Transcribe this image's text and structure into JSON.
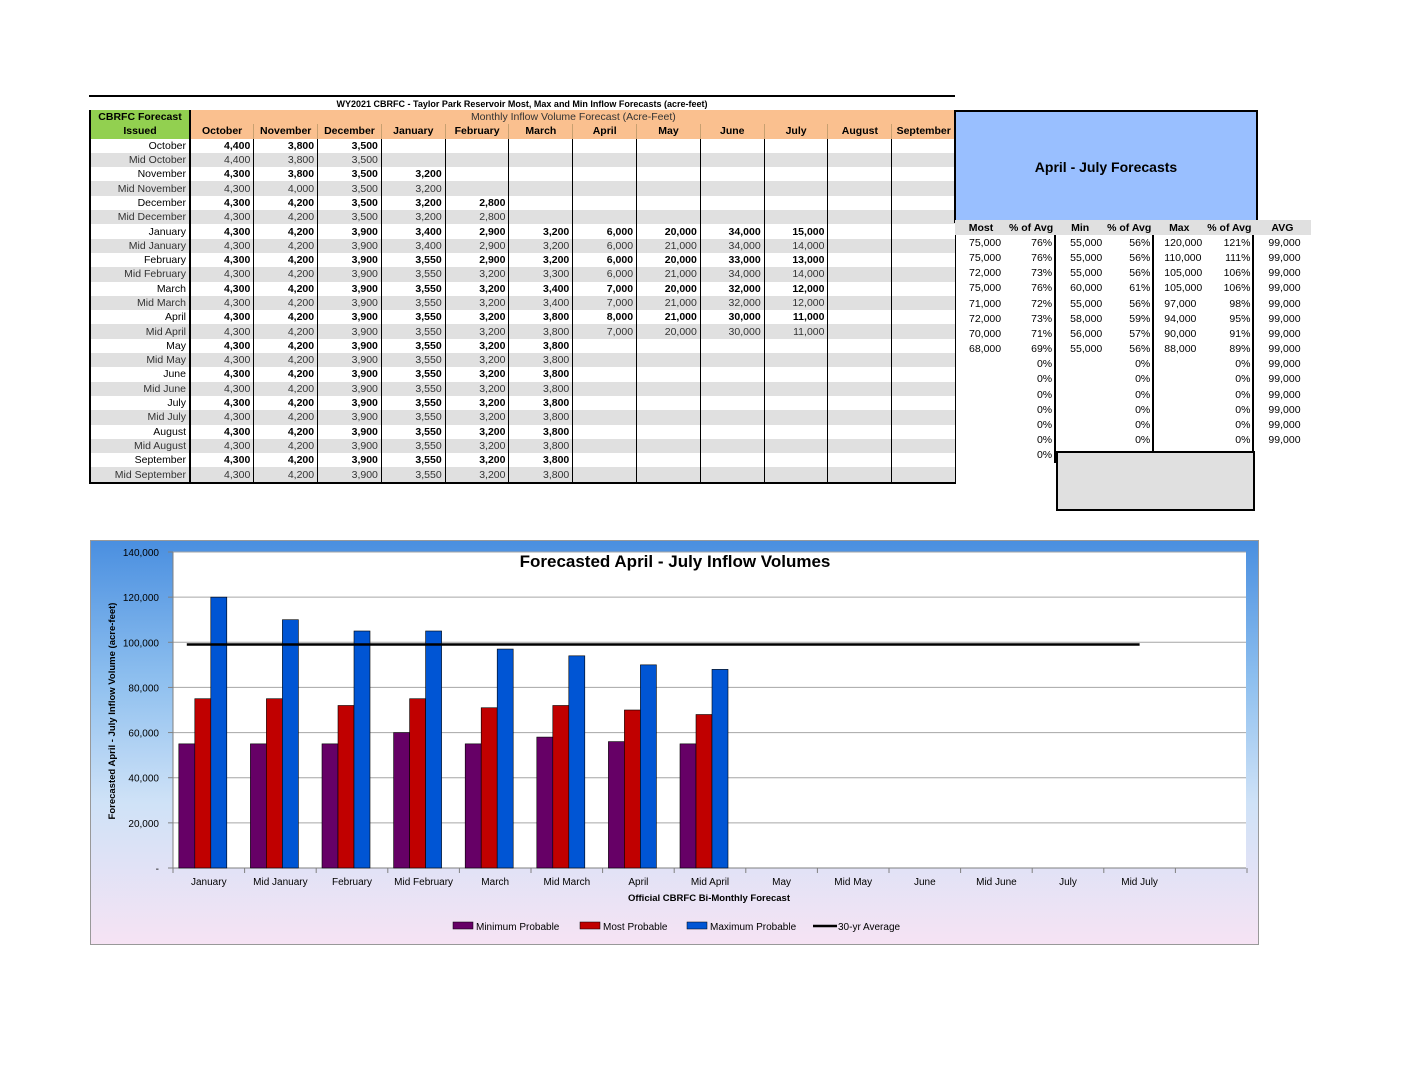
{
  "table": {
    "title": "WY2021 CBRFC - Taylor Park Reservoir Most, Max and Min Inflow Forecasts (acre-feet)",
    "header_left_1": "CBRFC Forecast",
    "header_left_2": "Issued",
    "header_monthly": "Monthly Inflow Volume Forecast (Acre-Feet)",
    "months": [
      "October",
      "November",
      "December",
      "January",
      "February",
      "March",
      "April",
      "May",
      "June",
      "July",
      "August",
      "September"
    ],
    "rows": [
      {
        "label": "October",
        "mid": false,
        "values": [
          "4,400",
          "3,800",
          "3,500",
          "",
          "",
          "",
          "",
          "",
          "",
          "",
          "",
          ""
        ]
      },
      {
        "label": "Mid October",
        "mid": true,
        "values": [
          "4,400",
          "3,800",
          "3,500",
          "",
          "",
          "",
          "",
          "",
          "",
          "",
          "",
          ""
        ]
      },
      {
        "label": "November",
        "mid": false,
        "values": [
          "4,300",
          "3,800",
          "3,500",
          "3,200",
          "",
          "",
          "",
          "",
          "",
          "",
          "",
          ""
        ]
      },
      {
        "label": "Mid November",
        "mid": true,
        "values": [
          "4,300",
          "4,000",
          "3,500",
          "3,200",
          "",
          "",
          "",
          "",
          "",
          "",
          "",
          ""
        ]
      },
      {
        "label": "December",
        "mid": false,
        "values": [
          "4,300",
          "4,200",
          "3,500",
          "3,200",
          "2,800",
          "",
          "",
          "",
          "",
          "",
          "",
          ""
        ]
      },
      {
        "label": "Mid December",
        "mid": true,
        "values": [
          "4,300",
          "4,200",
          "3,500",
          "3,200",
          "2,800",
          "",
          "",
          "",
          "",
          "",
          "",
          ""
        ]
      },
      {
        "label": "January",
        "mid": false,
        "values": [
          "4,300",
          "4,200",
          "3,900",
          "3,400",
          "2,900",
          "3,200",
          "6,000",
          "20,000",
          "34,000",
          "15,000",
          "",
          ""
        ]
      },
      {
        "label": "Mid January",
        "mid": true,
        "values": [
          "4,300",
          "4,200",
          "3,900",
          "3,400",
          "2,900",
          "3,200",
          "6,000",
          "21,000",
          "34,000",
          "14,000",
          "",
          ""
        ]
      },
      {
        "label": "February",
        "mid": false,
        "values": [
          "4,300",
          "4,200",
          "3,900",
          "3,550",
          "2,900",
          "3,200",
          "6,000",
          "20,000",
          "33,000",
          "13,000",
          "",
          ""
        ]
      },
      {
        "label": "Mid February",
        "mid": true,
        "values": [
          "4,300",
          "4,200",
          "3,900",
          "3,550",
          "3,200",
          "3,300",
          "6,000",
          "21,000",
          "34,000",
          "14,000",
          "",
          ""
        ]
      },
      {
        "label": "March",
        "mid": false,
        "values": [
          "4,300",
          "4,200",
          "3,900",
          "3,550",
          "3,200",
          "3,400",
          "7,000",
          "20,000",
          "32,000",
          "12,000",
          "",
          ""
        ]
      },
      {
        "label": "Mid March",
        "mid": true,
        "values": [
          "4,300",
          "4,200",
          "3,900",
          "3,550",
          "3,200",
          "3,400",
          "7,000",
          "21,000",
          "32,000",
          "12,000",
          "",
          ""
        ]
      },
      {
        "label": "April",
        "mid": false,
        "values": [
          "4,300",
          "4,200",
          "3,900",
          "3,550",
          "3,200",
          "3,800",
          "8,000",
          "21,000",
          "30,000",
          "11,000",
          "",
          ""
        ]
      },
      {
        "label": "Mid April",
        "mid": true,
        "values": [
          "4,300",
          "4,200",
          "3,900",
          "3,550",
          "3,200",
          "3,800",
          "7,000",
          "20,000",
          "30,000",
          "11,000",
          "",
          ""
        ]
      },
      {
        "label": "May",
        "mid": false,
        "values": [
          "4,300",
          "4,200",
          "3,900",
          "3,550",
          "3,200",
          "3,800",
          "",
          "",
          "",
          "",
          "",
          ""
        ]
      },
      {
        "label": "Mid May",
        "mid": true,
        "values": [
          "4,300",
          "4,200",
          "3,900",
          "3,550",
          "3,200",
          "3,800",
          "",
          "",
          "",
          "",
          "",
          ""
        ]
      },
      {
        "label": "June",
        "mid": false,
        "values": [
          "4,300",
          "4,200",
          "3,900",
          "3,550",
          "3,200",
          "3,800",
          "",
          "",
          "",
          "",
          "",
          ""
        ]
      },
      {
        "label": "Mid June",
        "mid": true,
        "values": [
          "4,300",
          "4,200",
          "3,900",
          "3,550",
          "3,200",
          "3,800",
          "",
          "",
          "",
          "",
          "",
          ""
        ]
      },
      {
        "label": "July",
        "mid": false,
        "values": [
          "4,300",
          "4,200",
          "3,900",
          "3,550",
          "3,200",
          "3,800",
          "",
          "",
          "",
          "",
          "",
          ""
        ]
      },
      {
        "label": "Mid July",
        "mid": true,
        "values": [
          "4,300",
          "4,200",
          "3,900",
          "3,550",
          "3,200",
          "3,800",
          "",
          "",
          "",
          "",
          "",
          ""
        ]
      },
      {
        "label": "August",
        "mid": false,
        "values": [
          "4,300",
          "4,200",
          "3,900",
          "3,550",
          "3,200",
          "3,800",
          "",
          "",
          "",
          "",
          "",
          ""
        ]
      },
      {
        "label": "Mid August",
        "mid": true,
        "values": [
          "4,300",
          "4,200",
          "3,900",
          "3,550",
          "3,200",
          "3,800",
          "",
          "",
          "",
          "",
          "",
          ""
        ]
      },
      {
        "label": "September",
        "mid": false,
        "values": [
          "4,300",
          "4,200",
          "3,900",
          "3,550",
          "3,200",
          "3,800",
          "",
          "",
          "",
          "",
          "",
          ""
        ]
      },
      {
        "label": "Mid September",
        "mid": true,
        "values": [
          "4,300",
          "4,200",
          "3,900",
          "3,550",
          "3,200",
          "3,800",
          "",
          "",
          "",
          "",
          "",
          ""
        ]
      }
    ]
  },
  "summary": {
    "title": "April - July Forecasts",
    "headers": [
      "Most",
      "% of Avg",
      "Min",
      "% of Avg",
      "Max",
      "% of Avg",
      "AVG"
    ],
    "rows": [
      [
        "75,000",
        "76%",
        "55,000",
        "56%",
        "120,000",
        "121%",
        "99,000"
      ],
      [
        "75,000",
        "76%",
        "55,000",
        "56%",
        "110,000",
        "111%",
        "99,000"
      ],
      [
        "72,000",
        "73%",
        "55,000",
        "56%",
        "105,000",
        "106%",
        "99,000"
      ],
      [
        "75,000",
        "76%",
        "60,000",
        "61%",
        "105,000",
        "106%",
        "99,000"
      ],
      [
        "71,000",
        "72%",
        "55,000",
        "56%",
        "97,000",
        "98%",
        "99,000"
      ],
      [
        "72,000",
        "73%",
        "58,000",
        "59%",
        "94,000",
        "95%",
        "99,000"
      ],
      [
        "70,000",
        "71%",
        "56,000",
        "57%",
        "90,000",
        "91%",
        "99,000"
      ],
      [
        "68,000",
        "69%",
        "55,000",
        "56%",
        "88,000",
        "89%",
        "99,000"
      ],
      [
        "",
        "0%",
        "",
        "0%",
        "",
        "0%",
        "99,000"
      ],
      [
        "",
        "0%",
        "",
        "0%",
        "",
        "0%",
        "99,000"
      ],
      [
        "",
        "0%",
        "",
        "0%",
        "",
        "0%",
        "99,000"
      ],
      [
        "",
        "0%",
        "",
        "0%",
        "",
        "0%",
        "99,000"
      ],
      [
        "",
        "0%",
        "",
        "0%",
        "",
        "0%",
        "99,000"
      ],
      [
        "",
        "0%",
        "",
        "0%",
        "",
        "0%",
        "99,000"
      ],
      [
        "",
        "0%",
        "",
        "",
        "",
        "",
        ""
      ]
    ]
  },
  "chart_data": {
    "type": "bar",
    "title": "Forecasted April - July Inflow Volumes",
    "xlabel": "Official CBRFC Bi-Monthly Forecast",
    "ylabel": "Forecasted April - July Inflow Volume (acre-feet)",
    "ylim": [
      0,
      140000
    ],
    "yticks": [
      0,
      20000,
      40000,
      60000,
      80000,
      100000,
      120000,
      140000
    ],
    "ytick_labels": [
      "-",
      "20,000",
      "40,000",
      "60,000",
      "80,000",
      "100,000",
      "120,000",
      "140,000"
    ],
    "categories": [
      "January",
      "Mid January",
      "February",
      "Mid February",
      "March",
      "Mid March",
      "April",
      "Mid April",
      "May",
      "Mid May",
      "June",
      "Mid June",
      "July",
      "Mid July"
    ],
    "series": [
      {
        "name": "Minimum Probable",
        "color": "#660066",
        "values": [
          55000,
          55000,
          55000,
          60000,
          55000,
          58000,
          56000,
          55000,
          null,
          null,
          null,
          null,
          null,
          null
        ]
      },
      {
        "name": "Most Probable",
        "color": "#c00000",
        "values": [
          75000,
          75000,
          72000,
          75000,
          71000,
          72000,
          70000,
          68000,
          null,
          null,
          null,
          null,
          null,
          null
        ]
      },
      {
        "name": "Maximum Probable",
        "color": "#0055d4",
        "values": [
          120000,
          110000,
          105000,
          105000,
          97000,
          94000,
          90000,
          88000,
          null,
          null,
          null,
          null,
          null,
          null
        ]
      }
    ],
    "average": {
      "name": "30-yr Average",
      "value": 99000,
      "color": "#000000"
    },
    "legend_position": "bottom",
    "grid": true
  }
}
